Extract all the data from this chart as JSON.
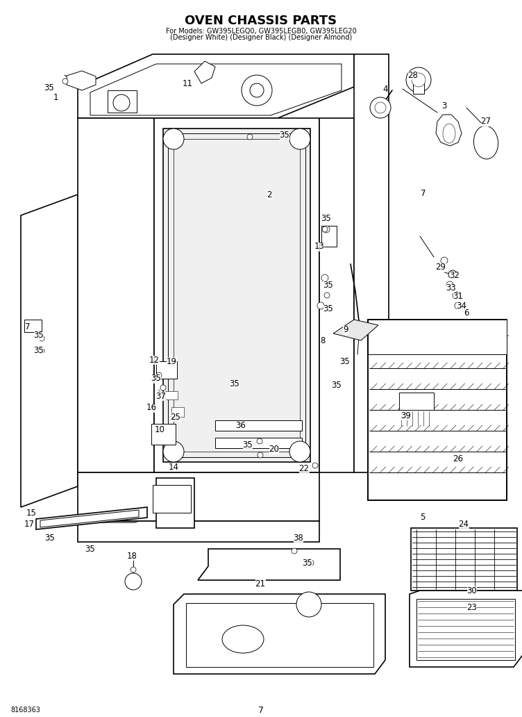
{
  "title": "OVEN CHASSIS PARTS",
  "subtitle_line1": "For Models: GW395LEGQ0, GW395LEGB0, GW395LEG20",
  "subtitle_line2": "(Designer White) (Designer Black) (Designer Almond)",
  "page_number": "7",
  "part_number": "8168363",
  "bg": "#ffffff",
  "lc": "#000000",
  "title_fs": 13,
  "sub_fs": 7,
  "lbl_fs": 8.5,
  "footer_fs": 7
}
